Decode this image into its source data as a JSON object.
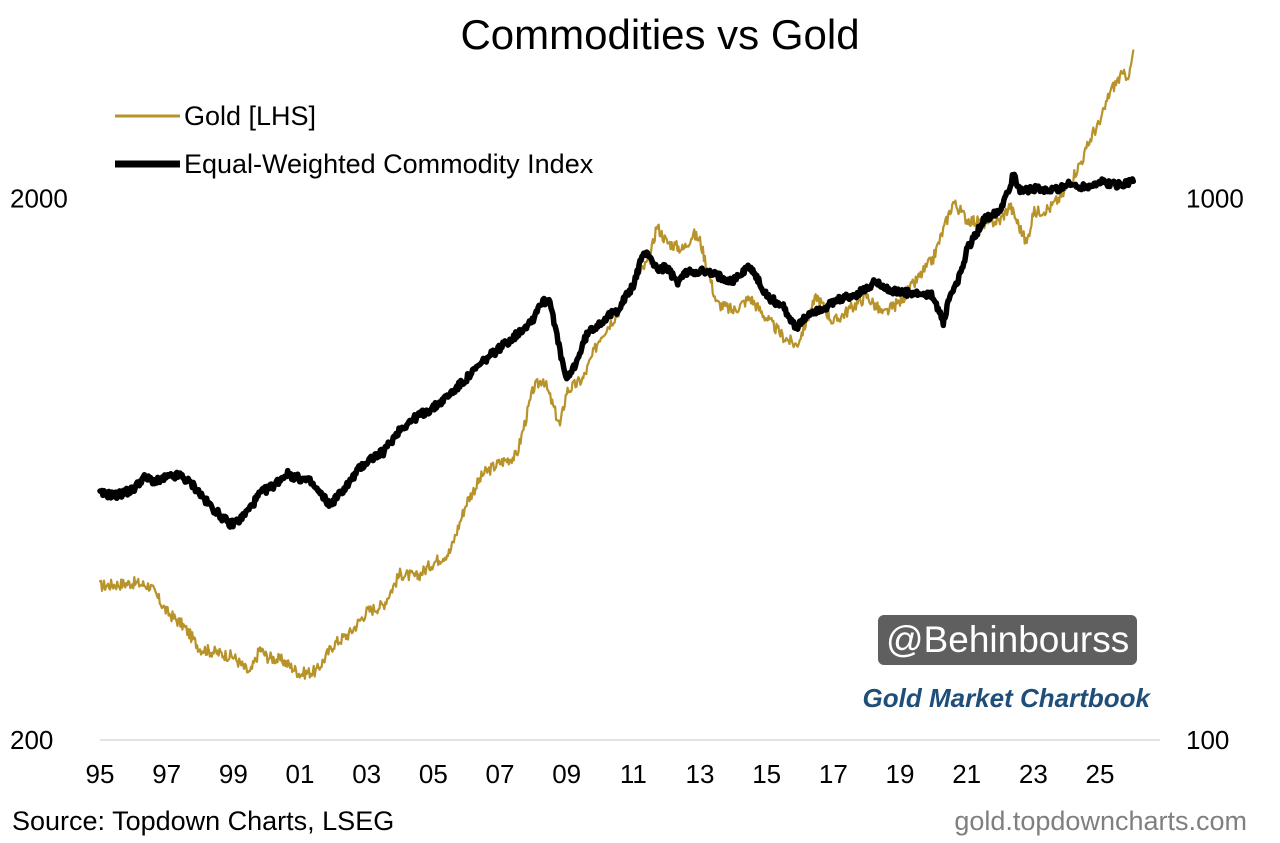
{
  "chart_data": {
    "type": "line",
    "title": "Commodities vs Gold",
    "x_tick_labels": [
      "95",
      "97",
      "99",
      "01",
      "03",
      "05",
      "07",
      "09",
      "11",
      "13",
      "15",
      "17",
      "19",
      "21",
      "23",
      "25"
    ],
    "x_tick_years": [
      1995,
      1997,
      1999,
      2001,
      2003,
      2005,
      2007,
      2009,
      2011,
      2013,
      2015,
      2017,
      2019,
      2021,
      2023,
      2025
    ],
    "xlim": [
      1995.0,
      2026.8
    ],
    "left_axis": {
      "scale": "log",
      "ylim": [
        200,
        3600
      ],
      "tick_values": [
        200,
        2000
      ],
      "tick_labels": [
        "200",
        "2000"
      ]
    },
    "right_axis": {
      "scale": "log",
      "ylim": [
        100,
        1800
      ],
      "tick_values": [
        100,
        1000
      ],
      "tick_labels": [
        "100",
        "1000"
      ]
    },
    "legend": {
      "position": "top-left",
      "entries": [
        "Gold [LHS]",
        "Equal-Weighted Commodity Index"
      ]
    },
    "series": [
      {
        "name": "Gold [LHS]",
        "axis": "left",
        "color": "#b8932a",
        "points": [
          [
            1995.0,
            385
          ],
          [
            1996.0,
            390
          ],
          [
            1996.5,
            385
          ],
          [
            1997.0,
            345
          ],
          [
            1997.5,
            325
          ],
          [
            1998.0,
            295
          ],
          [
            1998.5,
            290
          ],
          [
            1999.0,
            285
          ],
          [
            1999.5,
            265
          ],
          [
            1999.8,
            295
          ],
          [
            2000.0,
            285
          ],
          [
            2000.5,
            280
          ],
          [
            2001.0,
            265
          ],
          [
            2001.5,
            268
          ],
          [
            2002.0,
            300
          ],
          [
            2002.5,
            315
          ],
          [
            2003.0,
            345
          ],
          [
            2003.5,
            355
          ],
          [
            2004.0,
            405
          ],
          [
            2004.5,
            400
          ],
          [
            2005.0,
            425
          ],
          [
            2005.5,
            445
          ],
          [
            2006.0,
            550
          ],
          [
            2006.5,
            620
          ],
          [
            2007.0,
            650
          ],
          [
            2007.5,
            670
          ],
          [
            2008.0,
            890
          ],
          [
            2008.3,
            930
          ],
          [
            2008.8,
            760
          ],
          [
            2009.0,
            880
          ],
          [
            2009.5,
            930
          ],
          [
            2010.0,
            1110
          ],
          [
            2010.5,
            1220
          ],
          [
            2011.0,
            1390
          ],
          [
            2011.5,
            1550
          ],
          [
            2011.7,
            1780
          ],
          [
            2012.0,
            1660
          ],
          [
            2012.5,
            1610
          ],
          [
            2012.8,
            1720
          ],
          [
            2013.0,
            1670
          ],
          [
            2013.5,
            1280
          ],
          [
            2014.0,
            1240
          ],
          [
            2014.5,
            1310
          ],
          [
            2015.0,
            1200
          ],
          [
            2015.5,
            1110
          ],
          [
            2015.9,
            1070
          ],
          [
            2016.5,
            1320
          ],
          [
            2017.0,
            1180
          ],
          [
            2017.5,
            1250
          ],
          [
            2018.0,
            1320
          ],
          [
            2018.5,
            1220
          ],
          [
            2019.0,
            1290
          ],
          [
            2019.5,
            1410
          ],
          [
            2020.0,
            1550
          ],
          [
            2020.6,
            1970
          ],
          [
            2021.0,
            1830
          ],
          [
            2021.5,
            1800
          ],
          [
            2022.0,
            1820
          ],
          [
            2022.3,
            1940
          ],
          [
            2022.8,
            1650
          ],
          [
            2023.0,
            1880
          ],
          [
            2023.5,
            1920
          ],
          [
            2023.9,
            2040
          ],
          [
            2024.2,
            2200
          ],
          [
            2024.5,
            2380
          ],
          [
            2024.8,
            2650
          ],
          [
            2025.0,
            2750
          ],
          [
            2025.3,
            3150
          ],
          [
            2025.6,
            3350
          ],
          [
            2025.9,
            3400
          ],
          [
            2026.0,
            3750
          ]
        ]
      },
      {
        "name": "Equal-Weighted Commodity Index",
        "axis": "right",
        "color": "#000000",
        "points": [
          [
            1995.0,
            285
          ],
          [
            1995.5,
            283
          ],
          [
            1996.0,
            290
          ],
          [
            1996.3,
            305
          ],
          [
            1996.7,
            300
          ],
          [
            1997.0,
            305
          ],
          [
            1997.4,
            308
          ],
          [
            1997.8,
            295
          ],
          [
            1998.2,
            275
          ],
          [
            1998.6,
            260
          ],
          [
            1998.9,
            250
          ],
          [
            1999.2,
            255
          ],
          [
            1999.5,
            268
          ],
          [
            1999.8,
            285
          ],
          [
            2000.2,
            295
          ],
          [
            2000.6,
            310
          ],
          [
            2000.9,
            305
          ],
          [
            2001.3,
            300
          ],
          [
            2001.6,
            285
          ],
          [
            2001.9,
            272
          ],
          [
            2002.2,
            285
          ],
          [
            2002.5,
            300
          ],
          [
            2002.8,
            318
          ],
          [
            2003.1,
            330
          ],
          [
            2003.5,
            340
          ],
          [
            2004.0,
            375
          ],
          [
            2004.5,
            395
          ],
          [
            2005.0,
            410
          ],
          [
            2005.5,
            435
          ],
          [
            2006.0,
            465
          ],
          [
            2006.5,
            500
          ],
          [
            2007.0,
            530
          ],
          [
            2007.5,
            560
          ],
          [
            2008.0,
            600
          ],
          [
            2008.2,
            640
          ],
          [
            2008.5,
            650
          ],
          [
            2008.8,
            520
          ],
          [
            2009.0,
            460
          ],
          [
            2009.3,
            500
          ],
          [
            2009.6,
            560
          ],
          [
            2010.0,
            590
          ],
          [
            2010.5,
            620
          ],
          [
            2011.0,
            690
          ],
          [
            2011.2,
            760
          ],
          [
            2011.4,
            800
          ],
          [
            2011.7,
            740
          ],
          [
            2012.0,
            745
          ],
          [
            2012.3,
            700
          ],
          [
            2012.6,
            730
          ],
          [
            2013.0,
            735
          ],
          [
            2013.5,
            720
          ],
          [
            2014.0,
            705
          ],
          [
            2014.5,
            750
          ],
          [
            2015.0,
            660
          ],
          [
            2015.5,
            630
          ],
          [
            2015.9,
            575
          ],
          [
            2016.3,
            615
          ],
          [
            2016.8,
            630
          ],
          [
            2017.2,
            650
          ],
          [
            2017.6,
            660
          ],
          [
            2018.0,
            680
          ],
          [
            2018.3,
            705
          ],
          [
            2018.7,
            675
          ],
          [
            2019.0,
            670
          ],
          [
            2019.5,
            665
          ],
          [
            2020.0,
            660
          ],
          [
            2020.3,
            590
          ],
          [
            2020.5,
            660
          ],
          [
            2020.8,
            720
          ],
          [
            2021.0,
            800
          ],
          [
            2021.5,
            910
          ],
          [
            2022.0,
            955
          ],
          [
            2022.2,
            1020
          ],
          [
            2022.4,
            1100
          ],
          [
            2022.6,
            1040
          ],
          [
            2023.0,
            1040
          ],
          [
            2023.5,
            1030
          ],
          [
            2024.0,
            1060
          ],
          [
            2024.5,
            1050
          ],
          [
            2025.0,
            1070
          ],
          [
            2025.5,
            1060
          ],
          [
            2026.0,
            1075
          ]
        ]
      }
    ]
  },
  "legend_labels": [
    "Gold [LHS]",
    "Equal-Weighted Commodity Index"
  ],
  "watermark": "@Behinbourss",
  "chartbook_label": "Gold Market Chartbook",
  "source": "Source: Topdown Charts, LSEG",
  "site": "gold.topdowncharts.com"
}
